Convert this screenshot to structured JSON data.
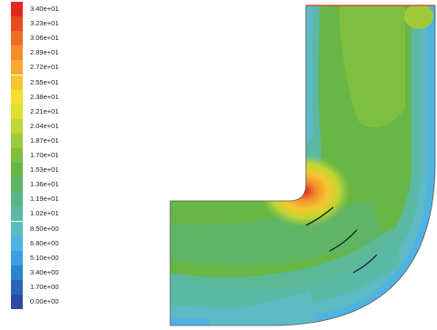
{
  "legend": {
    "entries": [
      {
        "label": "3.40e+01",
        "color": "#e4261e"
      },
      {
        "label": "3.23e+01",
        "color": "#ea4a22"
      },
      {
        "label": "3.06e+01",
        "color": "#ef6d26"
      },
      {
        "label": "2.89e+01",
        "color": "#f28f2c"
      },
      {
        "label": "2.72e+01",
        "color": "#f5aa2e"
      },
      {
        "label": "2.55e+01",
        "color": "#f6c62f"
      },
      {
        "label": "2.38e+01",
        "color": "#f5df2d"
      },
      {
        "label": "2.21e+01",
        "color": "#dfde2e"
      },
      {
        "label": "2.04e+01",
        "color": "#c3d633"
      },
      {
        "label": "1.87e+01",
        "color": "#9fcb3a"
      },
      {
        "label": "1.70e+01",
        "color": "#7fbf3f"
      },
      {
        "label": "1.53e+01",
        "color": "#67b646"
      },
      {
        "label": "1.36e+01",
        "color": "#5fb565"
      },
      {
        "label": "1.19e+01",
        "color": "#5ab687"
      },
      {
        "label": "1.02e+01",
        "color": "#5bb8a4"
      },
      {
        "label": "8.50e+00",
        "color": "#5dbac4"
      },
      {
        "label": "6.80e+00",
        "color": "#4fb3e1"
      },
      {
        "label": "5.10e+00",
        "color": "#3a9fe1"
      },
      {
        "label": "3.40e+00",
        "color": "#2e82cf"
      },
      {
        "label": "1.70e+00",
        "color": "#2b64b6"
      },
      {
        "label": "0.00e+00",
        "color": "#2a4c9f"
      }
    ]
  }
}
